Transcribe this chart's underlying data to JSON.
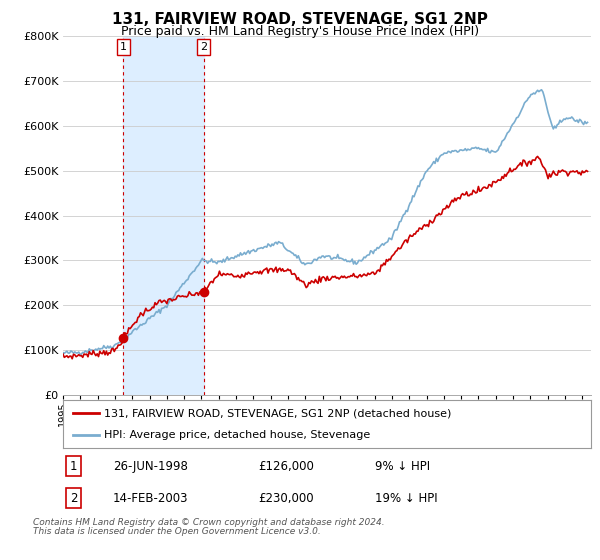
{
  "title": "131, FAIRVIEW ROAD, STEVENAGE, SG1 2NP",
  "subtitle": "Price paid vs. HM Land Registry's House Price Index (HPI)",
  "legend_label_red": "131, FAIRVIEW ROAD, STEVENAGE, SG1 2NP (detached house)",
  "legend_label_blue": "HPI: Average price, detached house, Stevenage",
  "annotation1_label": "1",
  "annotation1_date": "26-JUN-1998",
  "annotation1_price": "£126,000",
  "annotation1_hpi": "9% ↓ HPI",
  "annotation2_label": "2",
  "annotation2_date": "14-FEB-2003",
  "annotation2_price": "£230,000",
  "annotation2_hpi": "19% ↓ HPI",
  "footnote1": "Contains HM Land Registry data © Crown copyright and database right 2024.",
  "footnote2": "This data is licensed under the Open Government Licence v3.0.",
  "red_color": "#cc0000",
  "blue_color": "#7aadcf",
  "shade_color": "#ddeeff",
  "grid_color": "#cccccc",
  "background_color": "#ffffff",
  "ylim": [
    0,
    800000
  ],
  "xmin": 1995.0,
  "xmax": 2025.5,
  "sale1_x": 1998.48,
  "sale1_y": 126000,
  "sale2_x": 2003.12,
  "sale2_y": 230000,
  "vline1_x": 1998.48,
  "vline2_x": 2003.12
}
